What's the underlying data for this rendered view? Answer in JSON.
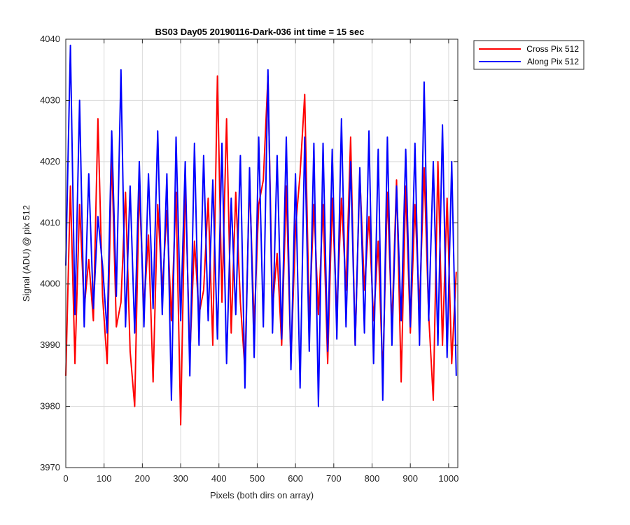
{
  "chart_data": {
    "type": "line",
    "title": "BS03 Day05 20190116-Dark-036 int time = 15 sec",
    "xlabel": "Pixels (both dirs on array)",
    "ylabel": "Signal (ADU) @ pix 512",
    "xlim": [
      0,
      1024
    ],
    "ylim": [
      3970,
      4040
    ],
    "xticks": [
      0,
      100,
      200,
      300,
      400,
      500,
      600,
      700,
      800,
      900,
      1000
    ],
    "yticks": [
      3970,
      3980,
      3990,
      4000,
      4010,
      4020,
      4030,
      4040
    ],
    "grid": true,
    "legend_position": "outside-top-right",
    "series": [
      {
        "name": "Cross Pix 512",
        "color": "#ff0000",
        "x": [
          0,
          12,
          24,
          36,
          48,
          60,
          72,
          84,
          96,
          108,
          120,
          132,
          144,
          156,
          168,
          180,
          192,
          204,
          216,
          228,
          240,
          252,
          264,
          276,
          288,
          300,
          312,
          324,
          336,
          348,
          360,
          372,
          384,
          396,
          408,
          420,
          432,
          444,
          456,
          468,
          480,
          492,
          504,
          516,
          528,
          540,
          552,
          564,
          576,
          588,
          600,
          612,
          624,
          636,
          648,
          660,
          672,
          684,
          696,
          708,
          720,
          732,
          744,
          756,
          768,
          780,
          792,
          804,
          816,
          828,
          840,
          852,
          864,
          876,
          888,
          900,
          912,
          924,
          936,
          948,
          960,
          972,
          984,
          996,
          1008,
          1020
        ],
        "y": [
          3985,
          4016,
          3987,
          4013,
          3996,
          4004,
          3994,
          4027,
          3998,
          3987,
          4021,
          3993,
          3997,
          4015,
          3989,
          3980,
          4016,
          3996,
          4008,
          3984,
          4013,
          3999,
          4012,
          3994,
          4015,
          3977,
          4017,
          3988,
          4007,
          3995,
          3999,
          4014,
          3990,
          4034,
          3997,
          4027,
          3992,
          4015,
          3997,
          3986,
          4017,
          3993,
          4013,
          4017,
          4034,
          3996,
          4005,
          3990,
          4016,
          3987,
          4009,
          4018,
          4031,
          3994,
          4013,
          3995,
          4013,
          3987,
          4014,
          3995,
          4014,
          3999,
          4024,
          3990,
          4018,
          3999,
          4011,
          3994,
          4007,
          3985,
          4015,
          3993,
          4017,
          3984,
          4016,
          3992,
          4013,
          3996,
          4019,
          3995,
          3981,
          4020,
          3990,
          4014,
          3987,
          4002
        ]
      },
      {
        "name": "Along Pix 512",
        "color": "#0000ff",
        "x": [
          0,
          12,
          24,
          36,
          48,
          60,
          72,
          84,
          96,
          108,
          120,
          132,
          144,
          156,
          168,
          180,
          192,
          204,
          216,
          228,
          240,
          252,
          264,
          276,
          288,
          300,
          312,
          324,
          336,
          348,
          360,
          372,
          384,
          396,
          408,
          420,
          432,
          444,
          456,
          468,
          480,
          492,
          504,
          516,
          528,
          540,
          552,
          564,
          576,
          588,
          600,
          612,
          624,
          636,
          648,
          660,
          672,
          684,
          696,
          708,
          720,
          732,
          744,
          756,
          768,
          780,
          792,
          804,
          816,
          828,
          840,
          852,
          864,
          876,
          888,
          900,
          912,
          924,
          936,
          948,
          960,
          972,
          984,
          996,
          1008,
          1020
        ],
        "y": [
          4003,
          4039,
          3995,
          4030,
          3993,
          4018,
          3996,
          4011,
          4003,
          3992,
          4025,
          3998,
          4035,
          3993,
          4016,
          3992,
          4020,
          3993,
          4018,
          3996,
          4025,
          3995,
          4018,
          3981,
          4024,
          3994,
          4020,
          3985,
          4023,
          3990,
          4021,
          3994,
          4017,
          3991,
          4023,
          3987,
          4014,
          3995,
          4021,
          3983,
          4019,
          3988,
          4024,
          3993,
          4035,
          3992,
          4021,
          3991,
          4024,
          3986,
          4018,
          3983,
          4024,
          3989,
          4023,
          3980,
          4023,
          3989,
          4022,
          3991,
          4027,
          3993,
          4020,
          3990,
          4019,
          3992,
          4025,
          3987,
          4022,
          3981,
          4024,
          3990,
          4016,
          3994,
          4022,
          3993,
          4023,
          3990,
          4033,
          3994,
          4020,
          3990,
          4026,
          3988,
          4020,
          3985
        ]
      }
    ]
  }
}
